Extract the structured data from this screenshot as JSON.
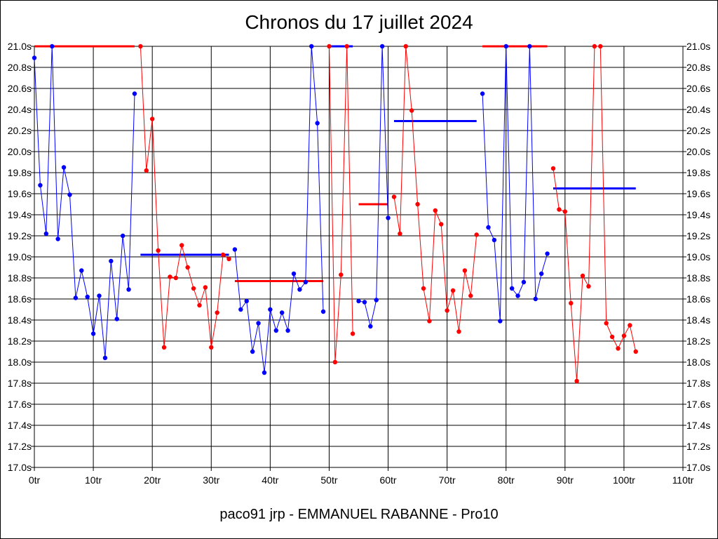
{
  "chart_data": {
    "type": "line",
    "title": "Chronos du 17 juillet 2024",
    "footer": "paco91 jrp - EMMANUEL RABANNE - Pro10",
    "xlabel": "",
    "ylabel": "",
    "xlim": [
      0,
      110
    ],
    "ylim": [
      17.0,
      21.0
    ],
    "grid": true,
    "x_ticks": [
      0,
      10,
      20,
      30,
      40,
      50,
      60,
      70,
      80,
      90,
      100,
      110
    ],
    "x_tick_labels": [
      "0tr",
      "10tr",
      "20tr",
      "30tr",
      "40tr",
      "50tr",
      "60tr",
      "70tr",
      "80tr",
      "90tr",
      "100tr",
      "110tr"
    ],
    "y_ticks": [
      17.0,
      17.2,
      17.4,
      17.6,
      17.8,
      18.0,
      18.2,
      18.4,
      18.6,
      18.8,
      19.0,
      19.2,
      19.4,
      19.6,
      19.8,
      20.0,
      20.2,
      20.4,
      20.6,
      20.8,
      21.0
    ],
    "y_tick_labels": [
      "17.0s",
      "17.2s",
      "17.4s",
      "17.6s",
      "17.8s",
      "18.0s",
      "18.2s",
      "18.4s",
      "18.6s",
      "18.8s",
      "19.0s",
      "19.2s",
      "19.4s",
      "19.6s",
      "19.8s",
      "20.0s",
      "20.2s",
      "20.4s",
      "20.6s",
      "20.8s",
      "21.0s"
    ],
    "series": [
      {
        "color": "#0000ff",
        "x": [
          0,
          1,
          2,
          3,
          4,
          5,
          6,
          7,
          8,
          9,
          10,
          11,
          12,
          13,
          14,
          15,
          16,
          17
        ],
        "y": [
          20.89,
          19.68,
          19.22,
          21.0,
          19.17,
          19.85,
          19.59,
          18.61,
          18.87,
          18.62,
          18.27,
          18.63,
          18.04,
          18.96,
          18.41,
          19.2,
          18.69,
          20.55
        ]
      },
      {
        "color": "#ff0000",
        "x": [
          18,
          19,
          20,
          21,
          22,
          23,
          24,
          25,
          26,
          27,
          28,
          29,
          30,
          31,
          32,
          33
        ],
        "y": [
          21.0,
          19.82,
          20.31,
          19.06,
          18.14,
          18.81,
          18.8,
          19.11,
          18.9,
          18.7,
          18.54,
          18.71,
          18.14,
          18.47,
          19.02,
          18.98
        ]
      },
      {
        "color": "#0000ff",
        "x": [
          34,
          35,
          36,
          37,
          38,
          39,
          40,
          41,
          42,
          43,
          44,
          45,
          46,
          47,
          48,
          49
        ],
        "y": [
          19.07,
          18.5,
          18.58,
          18.1,
          18.37,
          17.9,
          18.5,
          18.3,
          18.47,
          18.3,
          18.84,
          18.69,
          18.76,
          21.0,
          20.27,
          18.48
        ]
      },
      {
        "color": "#ff0000",
        "x": [
          50,
          51,
          52,
          53,
          54
        ],
        "y": [
          21.0,
          18.0,
          18.83,
          21.0,
          18.27
        ]
      },
      {
        "color": "#0000ff",
        "x": [
          55,
          56,
          57,
          58,
          59,
          60
        ],
        "y": [
          18.58,
          18.57,
          18.34,
          18.59,
          21.0,
          19.37
        ]
      },
      {
        "color": "#ff0000",
        "x": [
          61,
          62,
          63,
          64,
          65,
          66,
          67,
          68,
          69,
          70,
          71,
          72,
          73,
          74,
          75
        ],
        "y": [
          19.57,
          19.22,
          21.0,
          20.39,
          19.5,
          18.7,
          18.39,
          19.44,
          19.31,
          18.49,
          18.68,
          18.29,
          18.87,
          18.63,
          19.21
        ]
      },
      {
        "color": "#0000ff",
        "x": [
          76,
          77,
          78,
          79,
          80,
          81,
          82,
          83,
          84,
          85,
          86,
          87
        ],
        "y": [
          20.55,
          19.28,
          19.16,
          18.39,
          21.0,
          18.7,
          18.63,
          18.76,
          21.0,
          18.6,
          18.84,
          19.03
        ]
      },
      {
        "color": "#ff0000",
        "x": [
          88,
          89,
          90,
          91,
          92,
          93,
          94,
          95,
          96,
          97,
          98,
          99,
          100,
          101,
          102
        ],
        "y": [
          19.84,
          19.45,
          19.43,
          18.56,
          17.82,
          18.82,
          18.72,
          21.0,
          21.0,
          18.37,
          18.24,
          18.13,
          18.25,
          18.35,
          18.1
        ]
      }
    ],
    "averages": [
      {
        "color": "#ff0000",
        "x": [
          0,
          17
        ],
        "y": 21.0
      },
      {
        "color": "#0000ff",
        "x": [
          18,
          33
        ],
        "y": 19.02
      },
      {
        "color": "#ff0000",
        "x": [
          34,
          49
        ],
        "y": 18.77
      },
      {
        "color": "#0000ff",
        "x": [
          50,
          54
        ],
        "y": 21.0
      },
      {
        "color": "#ff0000",
        "x": [
          55,
          60
        ],
        "y": 19.5
      },
      {
        "color": "#0000ff",
        "x": [
          61,
          75
        ],
        "y": 20.29
      },
      {
        "color": "#ff0000",
        "x": [
          76,
          87
        ],
        "y": 21.0
      },
      {
        "color": "#0000ff",
        "x": [
          88,
          102
        ],
        "y": 19.65
      }
    ]
  }
}
